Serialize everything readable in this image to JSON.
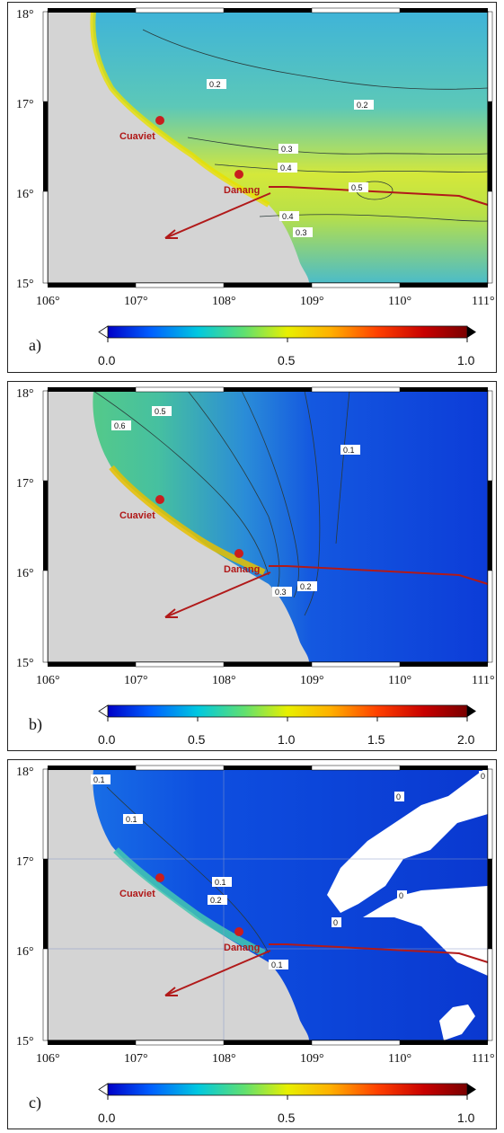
{
  "panels": [
    {
      "id": "a",
      "label": "a)",
      "x_ticks": [
        "106°",
        "107°",
        "108°",
        "109°",
        "110°",
        "111°"
      ],
      "y_ticks": [
        "18°",
        "17°",
        "16°",
        "15°"
      ],
      "places": [
        "Cuaviet",
        "Danang"
      ],
      "contour_labels": [
        "0.2",
        "0.2",
        "0.3",
        "0.4",
        "0.5",
        "0.4",
        "0.3"
      ],
      "colorbar_ticks": [
        "0.0",
        "0.5",
        "1.0"
      ]
    },
    {
      "id": "b",
      "label": "b)",
      "x_ticks": [
        "106°",
        "107°",
        "108°",
        "109°",
        "110°",
        "111°"
      ],
      "y_ticks": [
        "18°",
        "17°",
        "16°",
        "15°"
      ],
      "places": [
        "Cuaviet",
        "Danang"
      ],
      "contour_labels": [
        "0.5",
        "0.6",
        "0.1",
        "0.3",
        "0.2"
      ],
      "colorbar_ticks": [
        "0.0",
        "0.5",
        "1.0",
        "1.5",
        "2.0"
      ]
    },
    {
      "id": "c",
      "label": "c)",
      "x_ticks": [
        "106°",
        "107°",
        "108°",
        "109°",
        "110°",
        "111°"
      ],
      "y_ticks": [
        "18°",
        "17°",
        "16°",
        "15°"
      ],
      "places": [
        "Cuaviet",
        "Danang"
      ],
      "contour_labels": [
        "0.1",
        "0.1",
        "0.1",
        "0.2",
        "0.1",
        "0",
        "0",
        "0",
        "0"
      ],
      "colorbar_ticks": [
        "0.0",
        "0.5",
        "1.0"
      ]
    }
  ],
  "colors": {
    "land": "#d4d4d4",
    "track": "#b11a1a",
    "colormap": [
      "#0000c8",
      "#0060ff",
      "#00c8e0",
      "#60e070",
      "#e8f000",
      "#ffb000",
      "#ff4000",
      "#c80000",
      "#7a0000"
    ]
  }
}
